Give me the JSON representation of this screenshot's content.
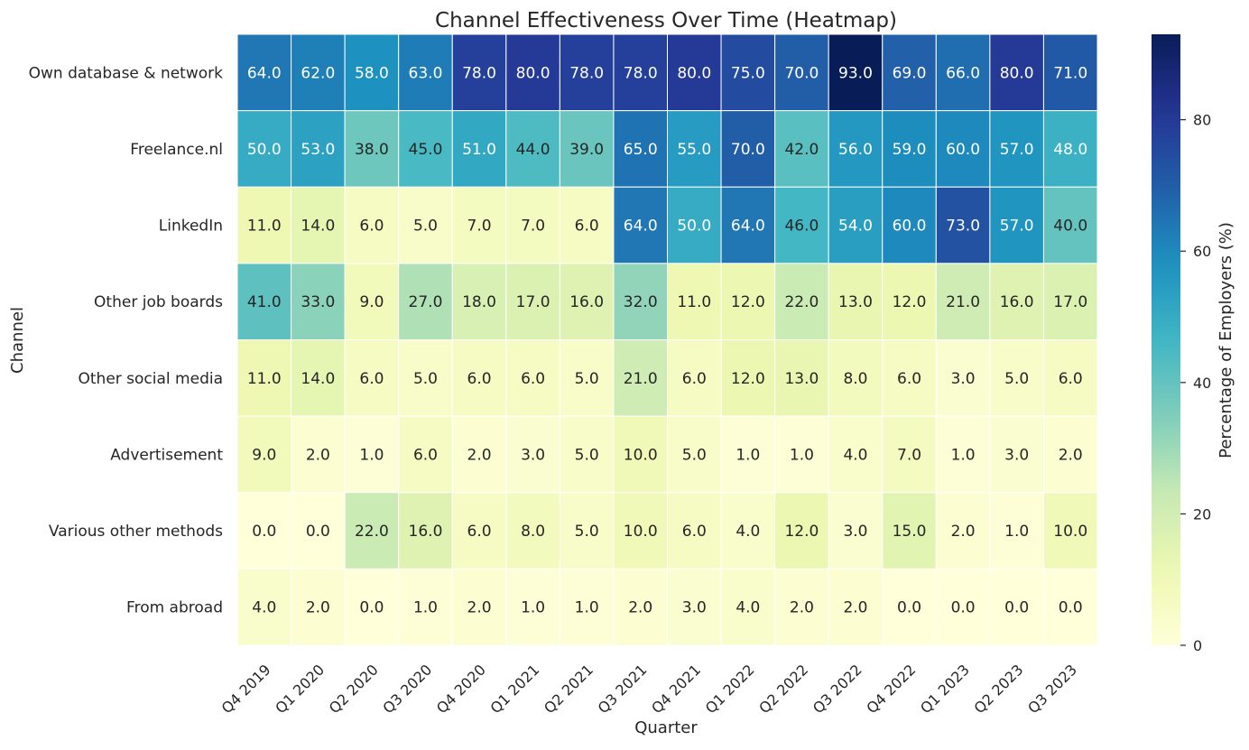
{
  "chart_data": {
    "type": "heatmap",
    "title": "Channel Effectiveness Over Time (Heatmap)",
    "xlabel": "Quarter",
    "ylabel": "Channel",
    "colorbar_label": "Percentage of Employers (%)",
    "colormap": "YlGnBu",
    "vmin": 0,
    "vmax": 93,
    "colorbar_ticks": [
      "0",
      "20",
      "40",
      "60",
      "80"
    ],
    "columns": [
      "Q4 2019",
      "Q1 2020",
      "Q2 2020",
      "Q3 2020",
      "Q4 2020",
      "Q1 2021",
      "Q2 2021",
      "Q3 2021",
      "Q4 2021",
      "Q1 2022",
      "Q2 2022",
      "Q3 2022",
      "Q4 2022",
      "Q1 2023",
      "Q2 2023",
      "Q3 2023"
    ],
    "rows": [
      "Own database & network",
      "Freelance.nl",
      "LinkedIn",
      "Other job boards",
      "Other social media",
      "Advertisement",
      "Various other methods",
      "From abroad"
    ],
    "values": [
      [
        64,
        62,
        58,
        63,
        78,
        80,
        78,
        78,
        80,
        75,
        70,
        93,
        69,
        66,
        80,
        71
      ],
      [
        50,
        53,
        38,
        45,
        51,
        44,
        39,
        65,
        55,
        70,
        42,
        56,
        59,
        60,
        57,
        48
      ],
      [
        11,
        14,
        6,
        5,
        7,
        7,
        6,
        64,
        50,
        64,
        46,
        54,
        60,
        73,
        57,
        40
      ],
      [
        41,
        33,
        9,
        27,
        18,
        17,
        16,
        32,
        11,
        12,
        22,
        13,
        12,
        21,
        16,
        17
      ],
      [
        11,
        14,
        6,
        5,
        6,
        6,
        5,
        21,
        6,
        12,
        13,
        8,
        6,
        3,
        5,
        6
      ],
      [
        9,
        2,
        1,
        6,
        2,
        3,
        5,
        10,
        5,
        1,
        1,
        4,
        7,
        1,
        3,
        2
      ],
      [
        0,
        0,
        22,
        16,
        6,
        8,
        5,
        10,
        6,
        4,
        12,
        3,
        15,
        2,
        1,
        10
      ],
      [
        4,
        2,
        0,
        1,
        2,
        1,
        1,
        2,
        3,
        4,
        2,
        2,
        0,
        0,
        0,
        0
      ]
    ],
    "grid": false,
    "legend": "colorbar-right"
  }
}
